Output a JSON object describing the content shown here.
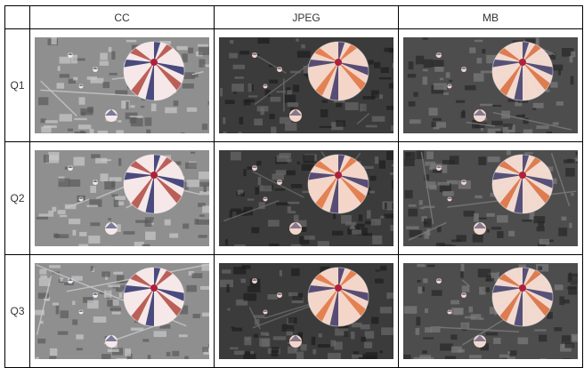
{
  "columns": [
    "CC",
    "JPEG",
    "MB"
  ],
  "rows": [
    "Q1",
    "Q2",
    "Q3"
  ],
  "variants": {
    "CC": {
      "bg": "#8f8f8f",
      "tone": "#c9c9c9",
      "dark": "#5a5a5a",
      "balloonA": "#f6e8e8",
      "balloonB": "#b0483e",
      "stripe": "#2a2f6b"
    },
    "JPEG": {
      "bg": "#3b3b3b",
      "tone": "#6a6a6a",
      "dark": "#1e1e1e",
      "balloonA": "#f3d6c9",
      "balloonB": "#e0723e",
      "stripe": "#3b3565"
    },
    "MB": {
      "bg": "#4d4d4d",
      "tone": "#7c7c7c",
      "dark": "#262626",
      "balloonA": "#f2d9cf",
      "balloonB": "#d96b3b",
      "stripe": "#3a3868"
    }
  }
}
